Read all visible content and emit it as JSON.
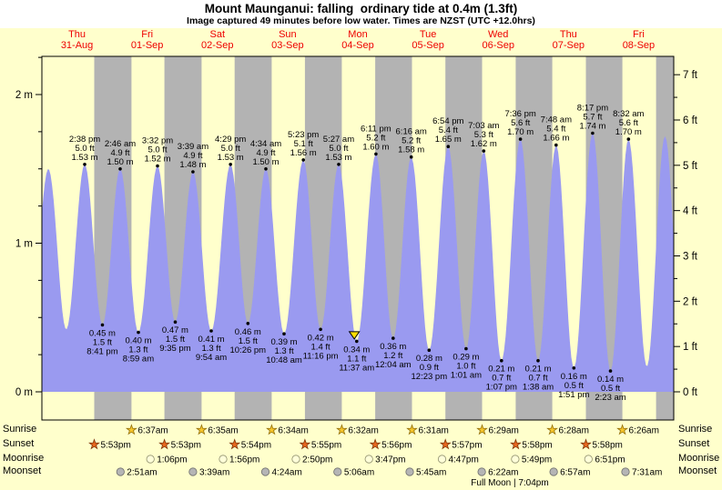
{
  "header": {
    "title": "Mount Maunganui: falling  ordinary tide at 0.4m (1.3ft)",
    "subtitle": "Image captured 49 minutes before low water. Times are NZST (UTC +12.0hrs)"
  },
  "chart_data": {
    "type": "area",
    "title": "Mount Maunganui tide curve",
    "y_axis_left": {
      "unit": "m",
      "labels": [
        "2 m",
        "1 m",
        "0 m"
      ]
    },
    "y_axis_right": {
      "unit": "ft",
      "labels": [
        "7 ft",
        "6 ft",
        "5 ft",
        "4 ft",
        "3 ft",
        "2 ft",
        "1 ft",
        "0 ft"
      ]
    },
    "y_range_m": [
      -0.19,
      2.26
    ],
    "days": [
      {
        "weekday": "Thu",
        "date": "31-Aug"
      },
      {
        "weekday": "Fri",
        "date": "01-Sep"
      },
      {
        "weekday": "Sat",
        "date": "02-Sep"
      },
      {
        "weekday": "Sun",
        "date": "03-Sep"
      },
      {
        "weekday": "Mon",
        "date": "04-Sep"
      },
      {
        "weekday": "Tue",
        "date": "05-Sep"
      },
      {
        "weekday": "Wed",
        "date": "06-Sep"
      },
      {
        "weekday": "Thu",
        "date": "07-Sep"
      },
      {
        "weekday": "Fri",
        "date": "08-Sep"
      }
    ],
    "tide_events": [
      {
        "type": "high",
        "day": 0,
        "time": "2:38 pm",
        "ft": "5.0 ft",
        "m": "1.53 m",
        "height_m": 1.53
      },
      {
        "type": "low",
        "day": 0,
        "time": "8:41 pm",
        "ft": "1.5 ft",
        "m": "0.45 m",
        "height_m": 0.45
      },
      {
        "type": "high",
        "day": 1,
        "time": "2:46 am",
        "ft": "4.9 ft",
        "m": "1.50 m",
        "height_m": 1.5
      },
      {
        "type": "low",
        "day": 1,
        "time": "8:59 am",
        "ft": "1.3 ft",
        "m": "0.40 m",
        "height_m": 0.4
      },
      {
        "type": "high",
        "day": 1,
        "time": "3:32 pm",
        "ft": "5.0 ft",
        "m": "1.52 m",
        "height_m": 1.52
      },
      {
        "type": "low",
        "day": 1,
        "time": "9:35 pm",
        "ft": "1.5 ft",
        "m": "0.47 m",
        "height_m": 0.47
      },
      {
        "type": "high",
        "day": 2,
        "time": "3:39 am",
        "ft": "4.9 ft",
        "m": "1.48 m",
        "height_m": 1.48
      },
      {
        "type": "low",
        "day": 2,
        "time": "9:54 am",
        "ft": "1.3 ft",
        "m": "0.41 m",
        "height_m": 0.41
      },
      {
        "type": "high",
        "day": 2,
        "time": "4:29 pm",
        "ft": "5.0 ft",
        "m": "1.53 m",
        "height_m": 1.53
      },
      {
        "type": "low",
        "day": 2,
        "time": "10:26 pm",
        "ft": "1.5 ft",
        "m": "0.46 m",
        "height_m": 0.46
      },
      {
        "type": "high",
        "day": 3,
        "time": "4:34 am",
        "ft": "4.9 ft",
        "m": "1.50 m",
        "height_m": 1.5
      },
      {
        "type": "low",
        "day": 3,
        "time": "10:48 am",
        "ft": "1.3 ft",
        "m": "0.39 m",
        "height_m": 0.39
      },
      {
        "type": "high",
        "day": 3,
        "time": "5:23 pm",
        "ft": "5.1 ft",
        "m": "1.56 m",
        "height_m": 1.56
      },
      {
        "type": "low",
        "day": 3,
        "time": "11:16 pm",
        "ft": "1.4 ft",
        "m": "0.42 m",
        "height_m": 0.42
      },
      {
        "type": "high",
        "day": 4,
        "time": "5:27 am",
        "ft": "5.0 ft",
        "m": "1.53 m",
        "height_m": 1.53
      },
      {
        "type": "low",
        "day": 4,
        "time": "11:37 am",
        "ft": "1.1 ft",
        "m": "0.34 m",
        "height_m": 0.34
      },
      {
        "type": "high",
        "day": 4,
        "time": "6:11 pm",
        "ft": "5.2 ft",
        "m": "1.60 m",
        "height_m": 1.6
      },
      {
        "type": "low",
        "day": 5,
        "time": "12:04 am",
        "ft": "1.2 ft",
        "m": "0.36 m",
        "height_m": 0.36
      },
      {
        "type": "high",
        "day": 5,
        "time": "6:16 am",
        "ft": "5.2 ft",
        "m": "1.58 m",
        "height_m": 1.58
      },
      {
        "type": "low",
        "day": 5,
        "time": "12:23 pm",
        "ft": "0.9 ft",
        "m": "0.28 m",
        "height_m": 0.28
      },
      {
        "type": "high",
        "day": 5,
        "time": "6:54 pm",
        "ft": "5.4 ft",
        "m": "1.65 m",
        "height_m": 1.65
      },
      {
        "type": "low",
        "day": 6,
        "time": "1:01 am",
        "ft": "1.0 ft",
        "m": "0.29 m",
        "height_m": 0.29
      },
      {
        "type": "high",
        "day": 6,
        "time": "7:03 am",
        "ft": "5.3 ft",
        "m": "1.62 m",
        "height_m": 1.62
      },
      {
        "type": "low",
        "day": 6,
        "time": "1:07 pm",
        "ft": "0.7 ft",
        "m": "0.21 m",
        "height_m": 0.21
      },
      {
        "type": "high",
        "day": 6,
        "time": "7:36 pm",
        "ft": "5.6 ft",
        "m": "1.70 m",
        "height_m": 1.7
      },
      {
        "type": "low",
        "day": 7,
        "time": "1:38 am",
        "ft": "0.7 ft",
        "m": "0.21 m",
        "height_m": 0.21
      },
      {
        "type": "high",
        "day": 7,
        "time": "7:48 am",
        "ft": "5.4 ft",
        "m": "1.66 m",
        "height_m": 1.66
      },
      {
        "type": "low",
        "day": 7,
        "time": "1:51 pm",
        "ft": "0.5 ft",
        "m": "0.16 m",
        "height_m": 0.16
      },
      {
        "type": "high",
        "day": 7,
        "time": "8:17 pm",
        "ft": "5.7 ft",
        "m": "1.74 m",
        "height_m": 1.74
      },
      {
        "type": "low",
        "day": 8,
        "time": "2:23 am",
        "ft": "0.5 ft",
        "m": "0.14 m",
        "height_m": 0.14
      },
      {
        "type": "high",
        "day": 8,
        "time": "8:32 am",
        "ft": "5.6 ft",
        "m": "1.70 m",
        "height_m": 1.7
      }
    ],
    "curve_helpers": [
      {
        "abs_h": -4.0,
        "height_m": 0.45
      },
      {
        "abs_h": 2.23,
        "height_m": 1.5
      },
      {
        "abs_h": 8.33,
        "height_m": 0.42
      },
      {
        "abs_h": 206.8,
        "height_m": 0.17
      },
      {
        "abs_h": 213.0,
        "height_m": 1.72
      },
      {
        "abs_h": 219.2,
        "height_m": 0.2
      }
    ],
    "current_marker": {
      "day": 4,
      "time": "10:48 am",
      "height_m": 0.38
    },
    "colors": {
      "day_band": "#ffffcc",
      "night_band": "#b3b3b3",
      "tide_fill": "#9a9af0",
      "day_label": "#ee0000",
      "marker": "#ffdf00"
    }
  },
  "astro": {
    "rows": [
      {
        "label": "Sunrise",
        "icon": "sunrise-star",
        "icon_color": "#f6c52c",
        "icon_stroke": "#93700a",
        "events": [
          {
            "day": 1,
            "time": "6:37am"
          },
          {
            "day": 2,
            "time": "6:35am"
          },
          {
            "day": 3,
            "time": "6:34am"
          },
          {
            "day": 4,
            "time": "6:32am"
          },
          {
            "day": 5,
            "time": "6:31am"
          },
          {
            "day": 6,
            "time": "6:29am"
          },
          {
            "day": 7,
            "time": "6:28am"
          },
          {
            "day": 8,
            "time": "6:26am"
          }
        ]
      },
      {
        "label": "Sunset",
        "icon": "sunset-star",
        "icon_color": "#e8671f",
        "icon_stroke": "#7d3408",
        "events": [
          {
            "day": 0,
            "time": "5:53pm"
          },
          {
            "day": 1,
            "time": "5:53pm"
          },
          {
            "day": 2,
            "time": "5:54pm"
          },
          {
            "day": 3,
            "time": "5:55pm"
          },
          {
            "day": 4,
            "time": "5:56pm"
          },
          {
            "day": 5,
            "time": "5:57pm"
          },
          {
            "day": 6,
            "time": "5:58pm"
          },
          {
            "day": 7,
            "time": "5:58pm"
          }
        ]
      },
      {
        "label": "Moonrise",
        "icon": "moonrise-moon",
        "icon_color": "#ffffd9",
        "icon_stroke": "#8f8f6e",
        "events": [
          {
            "day": 1,
            "time": "1:06pm"
          },
          {
            "day": 2,
            "time": "1:56pm"
          },
          {
            "day": 3,
            "time": "2:50pm"
          },
          {
            "day": 4,
            "time": "3:47pm"
          },
          {
            "day": 5,
            "time": "4:47pm"
          },
          {
            "day": 6,
            "time": "5:49pm"
          },
          {
            "day": 7,
            "time": "6:51pm"
          }
        ]
      },
      {
        "label": "Moonset",
        "icon": "moonset-moon",
        "icon_color": "#b5b5b5",
        "icon_stroke": "#6e6e6e",
        "events": [
          {
            "day": 1,
            "time": "2:51am"
          },
          {
            "day": 2,
            "time": "3:39am"
          },
          {
            "day": 3,
            "time": "4:24am"
          },
          {
            "day": 4,
            "time": "5:06am"
          },
          {
            "day": 5,
            "time": "5:45am"
          },
          {
            "day": 6,
            "time": "6:22am"
          },
          {
            "day": 7,
            "time": "6:57am"
          },
          {
            "day": 8,
            "time": "7:31am"
          }
        ]
      }
    ],
    "full_moon_note": "Full Moon | 7:04pm",
    "last_night_start": {
      "day": 8,
      "time": "5:58pm"
    }
  }
}
